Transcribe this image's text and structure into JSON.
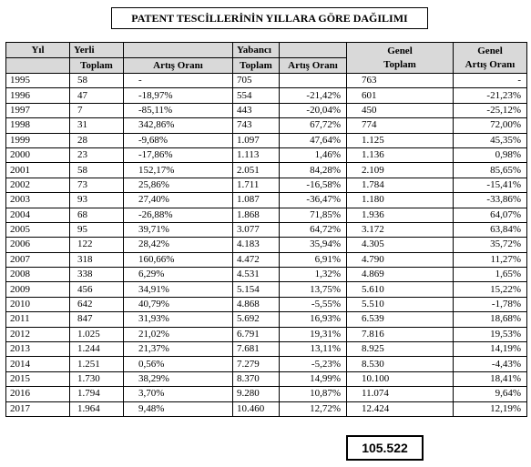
{
  "title": "PATENT TESCİLLERİNİN YILLARA GÖRE DAĞILIMI",
  "header": {
    "year": "Yıl",
    "domestic": "Yerli",
    "foreign": "Yabancı",
    "total": "Toplam",
    "change": "Artış Oranı",
    "general_total": [
      "Genel",
      "Toplam"
    ],
    "general_change": [
      "Genel",
      "Artış Oranı"
    ]
  },
  "table": {
    "rows": [
      [
        "1995",
        "58",
        "-",
        "705",
        null,
        "763",
        "-"
      ],
      [
        "1996",
        "47",
        "-18,97%",
        "554",
        "-21,42%",
        "601",
        "-21,23%"
      ],
      [
        "1997",
        "7",
        "-85,11%",
        "443",
        "-20,04%",
        "450",
        "-25,12%"
      ],
      [
        "1998",
        "31",
        "342,86%",
        "743",
        "67,72%",
        "774",
        "72,00%"
      ],
      [
        "1999",
        "28",
        "-9,68%",
        "1.097",
        "47,64%",
        "1.125",
        "45,35%"
      ],
      [
        "2000",
        "23",
        "-17,86%",
        "1.113",
        "1,46%",
        "1.136",
        "0,98%"
      ],
      [
        "2001",
        "58",
        "152,17%",
        "2.051",
        "84,28%",
        "2.109",
        "85,65%"
      ],
      [
        "2002",
        "73",
        "25,86%",
        "1.711",
        "-16,58%",
        "1.784",
        "-15,41%"
      ],
      [
        "2003",
        "93",
        "27,40%",
        "1.087",
        "-36,47%",
        "1.180",
        "-33,86%"
      ],
      [
        "2004",
        "68",
        "-26,88%",
        "1.868",
        "71,85%",
        "1.936",
        "64,07%"
      ],
      [
        "2005",
        "95",
        "39,71%",
        "3.077",
        "64,72%",
        "3.172",
        "63,84%"
      ],
      [
        "2006",
        "122",
        "28,42%",
        "4.183",
        "35,94%",
        "4.305",
        "35,72%"
      ],
      [
        "2007",
        "318",
        "160,66%",
        "4.472",
        "6,91%",
        "4.790",
        "11,27%"
      ],
      [
        "2008",
        "338",
        "6,29%",
        "4.531",
        "1,32%",
        "4.869",
        "1,65%"
      ],
      [
        "2009",
        "456",
        "34,91%",
        "5.154",
        "13,75%",
        "5.610",
        "15,22%"
      ],
      [
        "2010",
        "642",
        "40,79%",
        "4.868",
        "-5,55%",
        "5.510",
        "-1,78%"
      ],
      [
        "2011",
        "847",
        "31,93%",
        "5.692",
        "16,93%",
        "6.539",
        "18,68%"
      ],
      [
        "2012",
        "1.025",
        "21,02%",
        "6.791",
        "19,31%",
        "7.816",
        "19,53%"
      ],
      [
        "2013",
        "1.244",
        "21,37%",
        "7.681",
        "13,11%",
        "8.925",
        "14,19%"
      ],
      [
        "2014",
        "1.251",
        "0,56%",
        "7.279",
        "-5,23%",
        "8.530",
        "-4,43%"
      ],
      [
        "2015",
        "1.730",
        "38,29%",
        "8.370",
        "14,99%",
        "10.100",
        "18,41%"
      ],
      [
        "2016",
        "1.794",
        "3,70%",
        "9.280",
        "10,87%",
        "11.074",
        "9,64%"
      ],
      [
        "2017",
        "1.964",
        "9,48%",
        "10.460",
        "12,72%",
        "12.424",
        "12,19%"
      ]
    ]
  },
  "grand_total": "105.522"
}
